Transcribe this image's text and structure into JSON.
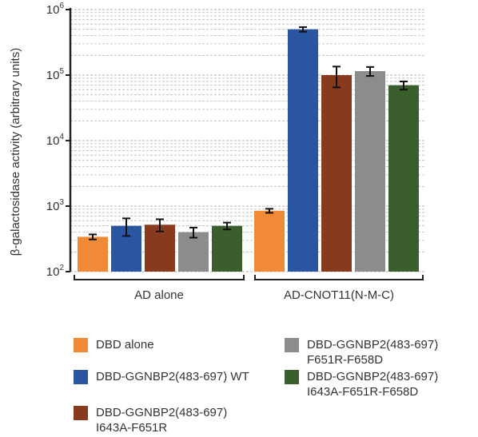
{
  "chart_data": {
    "type": "bar",
    "ylabel": "β-galactosidase activity (arbitrary units)",
    "yscale": "log",
    "ylim": [
      100,
      1000000
    ],
    "yticks": [
      {
        "value": 100,
        "base": "10",
        "exp": "2"
      },
      {
        "value": 1000,
        "base": "10",
        "exp": "3"
      },
      {
        "value": 10000,
        "base": "10",
        "exp": "4"
      },
      {
        "value": 100000,
        "base": "10",
        "exp": "5"
      },
      {
        "value": 1000000,
        "base": "10",
        "exp": "6"
      }
    ],
    "grid": "horizontal dashed minor+major",
    "categories": [
      "AD alone",
      "AD-CNOT11(N-M-C)"
    ],
    "legend_position": "bottom",
    "series": [
      {
        "name": "DBD alone",
        "color": "#F08A36",
        "values": [
          340,
          850
        ],
        "errors": [
          30,
          60
        ]
      },
      {
        "name": "DBD-GGNBP2(483-697) WT",
        "color": "#2A55A0",
        "values": [
          500,
          500000
        ],
        "errors": [
          150,
          40000
        ]
      },
      {
        "name": "DBD-GGNBP2(483-697)\nI643A-F651R",
        "color": "#873A1D",
        "values": [
          520,
          100000
        ],
        "errors": [
          110,
          35000
        ]
      },
      {
        "name": "DBD-GGNBP2(483-697)\nF651R-F658D",
        "color": "#8C8C8C",
        "values": [
          400,
          115000
        ],
        "errors": [
          70,
          18000
        ]
      },
      {
        "name": "DBD-GGNBP2(483-697)\nI643A-F651R-F658D",
        "color": "#3A5E2C",
        "values": [
          500,
          70000
        ],
        "errors": [
          60,
          10000
        ]
      }
    ]
  }
}
